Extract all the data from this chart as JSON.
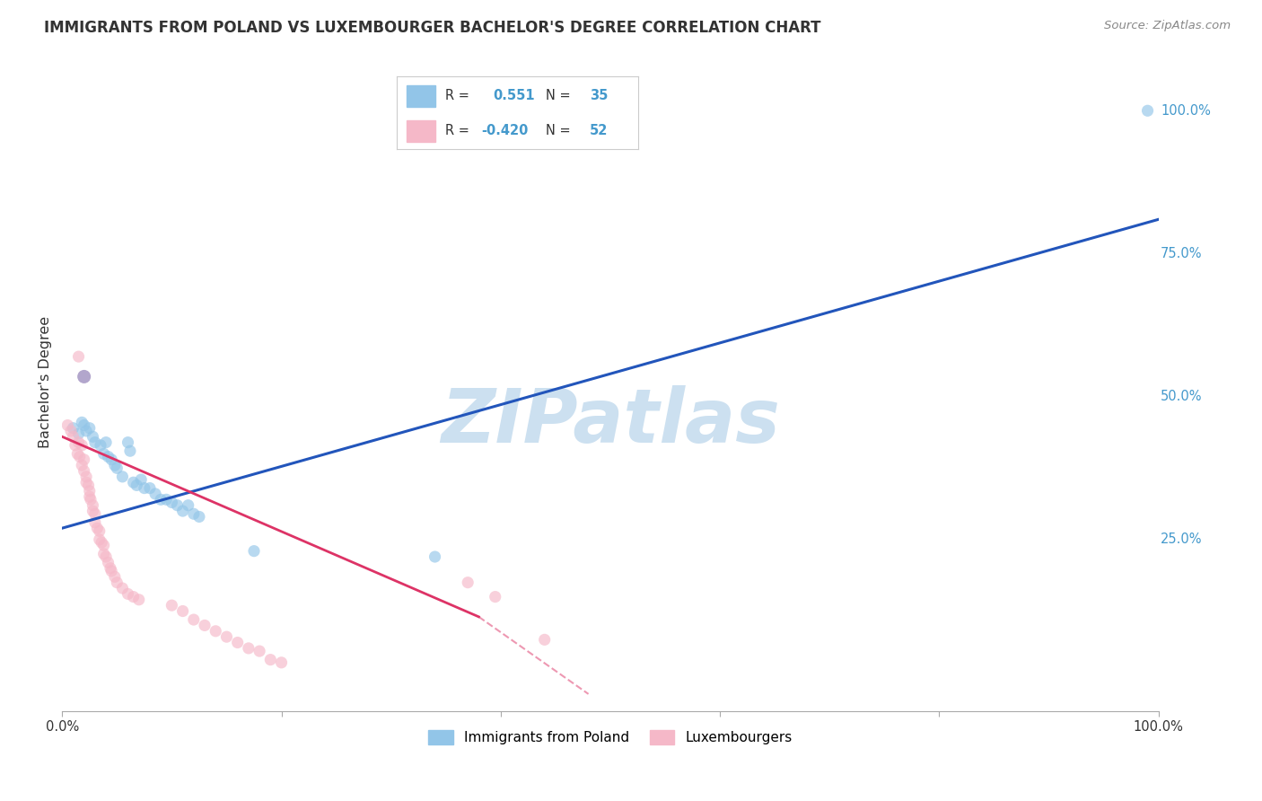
{
  "title": "IMMIGRANTS FROM POLAND VS LUXEMBOURGER BACHELOR'S DEGREE CORRELATION CHART",
  "source": "Source: ZipAtlas.com",
  "ylabel": "Bachelor's Degree",
  "watermark": "ZIPatlas",
  "legend_blue_r": "R =  0.551",
  "legend_blue_n": "N = 35",
  "legend_pink_r": "R = -0.420",
  "legend_pink_n": "N = 52",
  "legend_blue_label": "Immigrants from Poland",
  "legend_pink_label": "Luxembourgers",
  "blue_color": "#92c5e8",
  "pink_color": "#f5b8c8",
  "blue_line_color": "#2255bb",
  "pink_line_color": "#dd3366",
  "blue_scatter": [
    [
      0.01,
      0.445
    ],
    [
      0.015,
      0.435
    ],
    [
      0.018,
      0.455
    ],
    [
      0.02,
      0.45
    ],
    [
      0.022,
      0.44
    ],
    [
      0.025,
      0.445
    ],
    [
      0.028,
      0.43
    ],
    [
      0.03,
      0.42
    ],
    [
      0.035,
      0.415
    ],
    [
      0.038,
      0.4
    ],
    [
      0.04,
      0.42
    ],
    [
      0.042,
      0.395
    ],
    [
      0.045,
      0.39
    ],
    [
      0.048,
      0.38
    ],
    [
      0.05,
      0.375
    ],
    [
      0.055,
      0.36
    ],
    [
      0.06,
      0.42
    ],
    [
      0.062,
      0.405
    ],
    [
      0.065,
      0.35
    ],
    [
      0.068,
      0.345
    ],
    [
      0.072,
      0.355
    ],
    [
      0.075,
      0.34
    ],
    [
      0.08,
      0.34
    ],
    [
      0.085,
      0.33
    ],
    [
      0.09,
      0.32
    ],
    [
      0.095,
      0.32
    ],
    [
      0.1,
      0.315
    ],
    [
      0.105,
      0.31
    ],
    [
      0.11,
      0.3
    ],
    [
      0.115,
      0.31
    ],
    [
      0.12,
      0.295
    ],
    [
      0.125,
      0.29
    ],
    [
      0.175,
      0.23
    ],
    [
      0.34,
      0.22
    ],
    [
      0.99,
      1.0
    ]
  ],
  "pink_scatter": [
    [
      0.005,
      0.45
    ],
    [
      0.008,
      0.44
    ],
    [
      0.01,
      0.43
    ],
    [
      0.012,
      0.415
    ],
    [
      0.014,
      0.4
    ],
    [
      0.015,
      0.42
    ],
    [
      0.016,
      0.395
    ],
    [
      0.018,
      0.415
    ],
    [
      0.018,
      0.38
    ],
    [
      0.02,
      0.39
    ],
    [
      0.02,
      0.37
    ],
    [
      0.022,
      0.36
    ],
    [
      0.022,
      0.35
    ],
    [
      0.024,
      0.345
    ],
    [
      0.025,
      0.335
    ],
    [
      0.025,
      0.325
    ],
    [
      0.026,
      0.32
    ],
    [
      0.028,
      0.31
    ],
    [
      0.028,
      0.3
    ],
    [
      0.03,
      0.295
    ],
    [
      0.03,
      0.28
    ],
    [
      0.032,
      0.27
    ],
    [
      0.034,
      0.265
    ],
    [
      0.034,
      0.25
    ],
    [
      0.036,
      0.245
    ],
    [
      0.038,
      0.24
    ],
    [
      0.038,
      0.225
    ],
    [
      0.04,
      0.22
    ],
    [
      0.042,
      0.21
    ],
    [
      0.044,
      0.2
    ],
    [
      0.045,
      0.195
    ],
    [
      0.048,
      0.185
    ],
    [
      0.05,
      0.175
    ],
    [
      0.055,
      0.165
    ],
    [
      0.06,
      0.155
    ],
    [
      0.065,
      0.15
    ],
    [
      0.015,
      0.57
    ],
    [
      0.1,
      0.135
    ],
    [
      0.11,
      0.125
    ],
    [
      0.12,
      0.11
    ],
    [
      0.13,
      0.1
    ],
    [
      0.14,
      0.09
    ],
    [
      0.15,
      0.08
    ],
    [
      0.16,
      0.07
    ],
    [
      0.17,
      0.06
    ],
    [
      0.18,
      0.055
    ],
    [
      0.19,
      0.04
    ],
    [
      0.2,
      0.035
    ],
    [
      0.07,
      0.145
    ],
    [
      0.37,
      0.175
    ],
    [
      0.395,
      0.15
    ],
    [
      0.44,
      0.075
    ]
  ],
  "blue_line": [
    0.0,
    0.27,
    1.0,
    0.81
  ],
  "pink_line_solid": [
    0.0,
    0.43,
    0.38,
    0.115
  ],
  "pink_line_dash": [
    0.38,
    0.115,
    0.48,
    -0.02
  ],
  "xlim": [
    0.0,
    1.0
  ],
  "ylim": [
    -0.05,
    1.1
  ],
  "ytick_positions": [
    0.25,
    0.5,
    0.75,
    1.0
  ],
  "ytick_labels": [
    "25.0%",
    "50.0%",
    "75.0%",
    "100.0%"
  ],
  "background_color": "#ffffff",
  "grid_color": "#cccccc",
  "title_color": "#333333",
  "watermark_color": "#cce0f0",
  "scatter_alpha": 0.65,
  "scatter_size": 90
}
